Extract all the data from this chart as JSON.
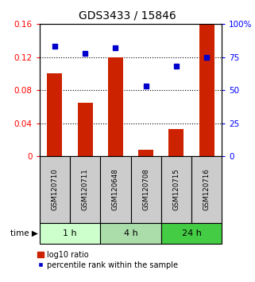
{
  "title": "GDS3433 / 15846",
  "samples": [
    "GSM120710",
    "GSM120711",
    "GSM120648",
    "GSM120708",
    "GSM120715",
    "GSM120716"
  ],
  "log10_ratio": [
    0.1,
    0.065,
    0.12,
    0.008,
    0.033,
    0.16
  ],
  "percentile_rank": [
    83,
    78,
    82,
    53,
    68,
    75
  ],
  "bar_color": "#cc2200",
  "square_color": "#0000cc",
  "ylim_left": [
    0,
    0.16
  ],
  "ylim_right": [
    0,
    100
  ],
  "yticks_left": [
    0,
    0.04,
    0.08,
    0.12,
    0.16
  ],
  "ytick_labels_left": [
    "0",
    "0.04",
    "0.08",
    "0.12",
    "0.16"
  ],
  "yticks_right": [
    0,
    25,
    50,
    75,
    100
  ],
  "ytick_labels_right": [
    "0",
    "25",
    "50",
    "75",
    "100%"
  ],
  "time_groups": [
    {
      "label": "1 h",
      "start": 0,
      "end": 2,
      "color": "#ccffcc"
    },
    {
      "label": "4 h",
      "start": 2,
      "end": 4,
      "color": "#aaddaa"
    },
    {
      "label": "24 h",
      "start": 4,
      "end": 6,
      "color": "#44cc44"
    }
  ],
  "time_label": "time",
  "legend_bar_label": "log10 ratio",
  "legend_square_label": "percentile rank within the sample",
  "grid_yticks": [
    0.04,
    0.08,
    0.12
  ],
  "bar_width": 0.5,
  "sample_box_color": "#cccccc",
  "sample_box_edge_color": "#000000"
}
